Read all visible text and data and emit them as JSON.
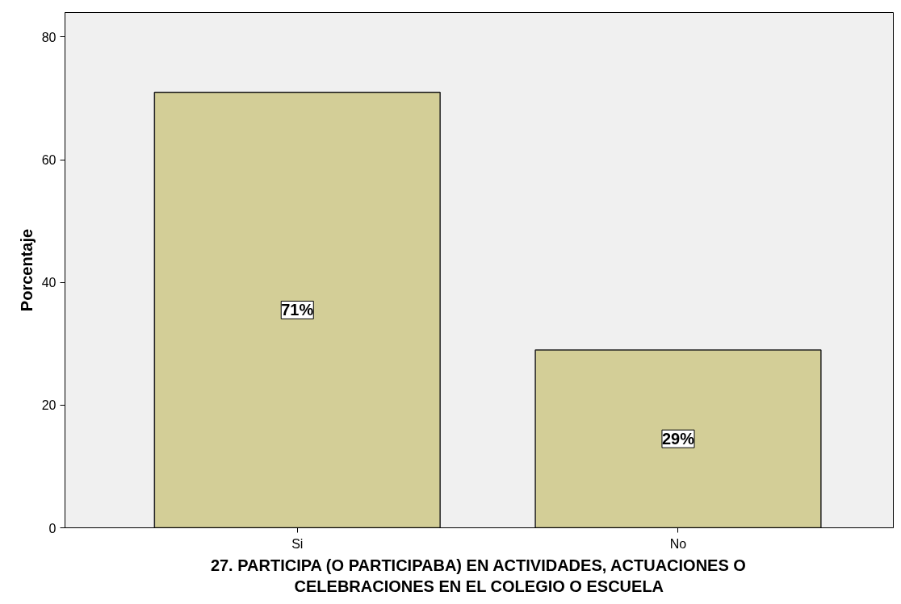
{
  "chart_data": {
    "type": "bar",
    "categories": [
      "Si",
      "No"
    ],
    "values": [
      71,
      29
    ],
    "value_labels": [
      "71%",
      "29%"
    ],
    "color": "#d3ce97",
    "xlabel": "27. PARTICIPA (O PARTICIPABA) EN ACTIVIDADES, ACTUACIONES O\nCELEBRACIONES EN EL COLEGIO O ESCUELA",
    "ylabel": "Porcentaje",
    "ylim": [
      0,
      84
    ],
    "yticks": [
      0,
      20,
      40,
      60,
      80
    ],
    "grid": false
  }
}
